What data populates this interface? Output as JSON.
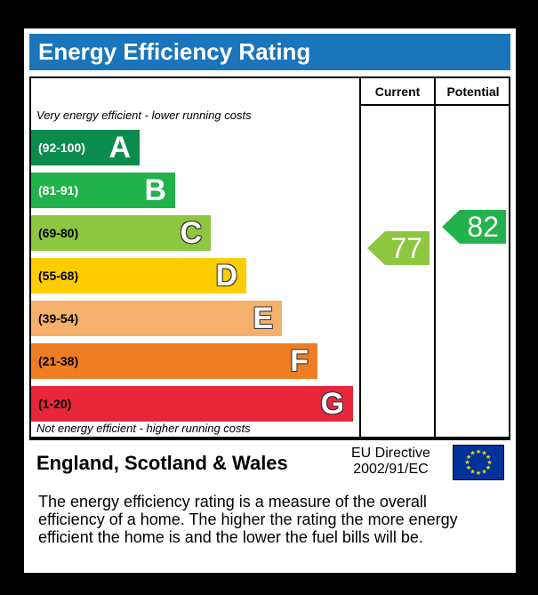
{
  "title": "Energy Efficiency Rating",
  "columns": {
    "current": "Current",
    "potential": "Potential"
  },
  "notes": {
    "top": "Very energy efficient - lower running costs",
    "bottom": "Not energy efficient - higher running costs"
  },
  "bands": [
    {
      "range": "(92-100)",
      "letter": "A",
      "color": "#0c8c4c"
    },
    {
      "range": "(81-91)",
      "letter": "B",
      "color": "#22b24c"
    },
    {
      "range": "(69-80)",
      "letter": "C",
      "color": "#8dc63f"
    },
    {
      "range": "(55-68)",
      "letter": "D",
      "color": "#ffcc00"
    },
    {
      "range": "(39-54)",
      "letter": "E",
      "color": "#f5b06b"
    },
    {
      "range": "(21-38)",
      "letter": "F",
      "color": "#ef7d22"
    },
    {
      "range": "(1-20)",
      "letter": "G",
      "color": "#e8263a"
    }
  ],
  "ratings": {
    "current": {
      "value": "77",
      "color": "#8dc63f"
    },
    "potential": {
      "value": "82",
      "color": "#22b24c"
    }
  },
  "footer": {
    "country": "England, Scotland & Wales",
    "directive_line1": "EU Directive",
    "directive_line2": "2002/91/EC"
  },
  "description": "The energy efficiency rating is a measure of the overall efficiency of a home. The higher the rating the more energy efficient the home is and the lower the fuel bills will be."
}
